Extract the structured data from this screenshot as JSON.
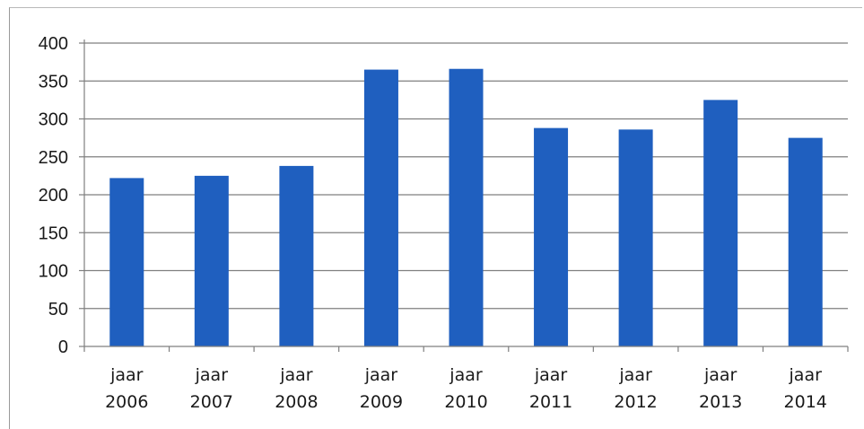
{
  "chart_data": {
    "type": "bar",
    "categories": [
      [
        "jaar",
        "2006"
      ],
      [
        "jaar",
        "2007"
      ],
      [
        "jaar",
        "2008"
      ],
      [
        "jaar",
        "2009"
      ],
      [
        "jaar",
        "2010"
      ],
      [
        "jaar",
        "2011"
      ],
      [
        "jaar",
        "2012"
      ],
      [
        "jaar",
        "2013"
      ],
      [
        "jaar",
        "2014"
      ]
    ],
    "values": [
      222,
      225,
      238,
      365,
      366,
      288,
      286,
      325,
      275
    ],
    "ylim": [
      0,
      400
    ],
    "yticks": [
      "0",
      "50",
      "100",
      "150",
      "200",
      "250",
      "300",
      "350",
      "400"
    ],
    "grid": true,
    "bar_color": "#1f5fbf",
    "title": "",
    "xlabel": "",
    "ylabel": ""
  }
}
